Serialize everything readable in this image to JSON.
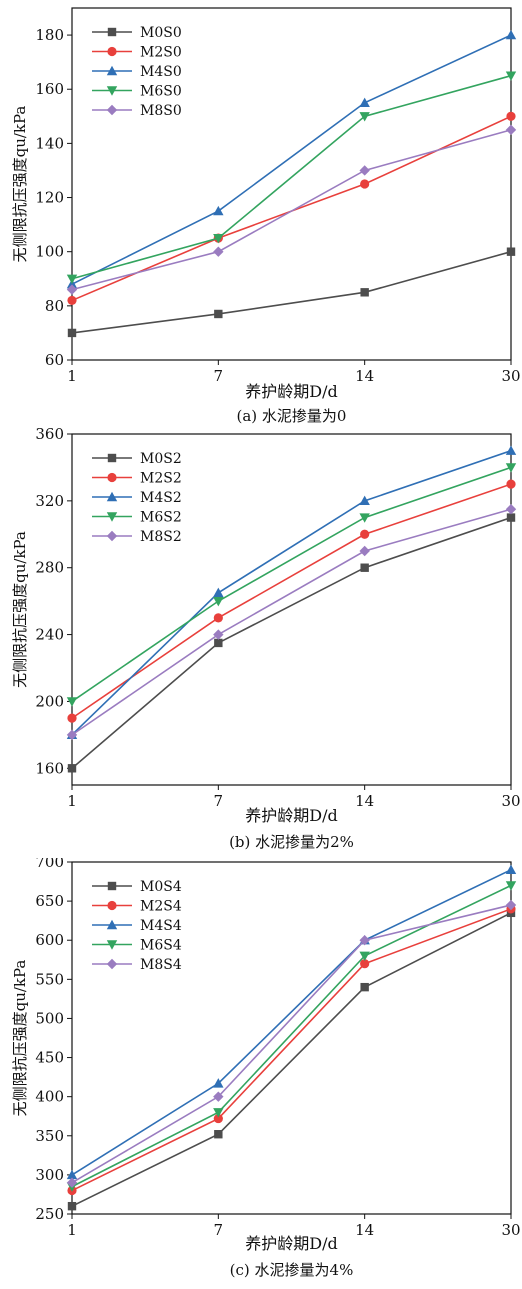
{
  "figure": {
    "chart_data": [
      {
        "type": "line",
        "caption": "(a) 水泥掺量为0",
        "xlabel": "养护龄期D/d",
        "ylabel": "无侧限抗压强度qu/kPa",
        "categories": [
          "1",
          "7",
          "14",
          "30"
        ],
        "ylim": [
          60,
          190
        ],
        "yticks": [
          60,
          80,
          100,
          120,
          140,
          160,
          180
        ],
        "legend_position": "top-left",
        "series": [
          {
            "name": "M0S0",
            "values": [
              70,
              77,
              85,
              100
            ]
          },
          {
            "name": "M2S0",
            "values": [
              82,
              105,
              125,
              150
            ]
          },
          {
            "name": "M4S0",
            "values": [
              88,
              115,
              155,
              180
            ]
          },
          {
            "name": "M6S0",
            "values": [
              90,
              105,
              150,
              165
            ]
          },
          {
            "name": "M8S0",
            "values": [
              86,
              100,
              130,
              145
            ]
          }
        ]
      },
      {
        "type": "line",
        "caption": "(b) 水泥掺量为2%",
        "xlabel": "养护龄期D/d",
        "ylabel": "无侧限抗压强度qu/kPa",
        "categories": [
          "1",
          "7",
          "14",
          "30"
        ],
        "ylim": [
          150,
          360
        ],
        "yticks": [
          160,
          200,
          240,
          280,
          320,
          360
        ],
        "legend_position": "top-left",
        "series": [
          {
            "name": "M0S2",
            "values": [
              160,
              235,
              280,
              310
            ]
          },
          {
            "name": "M2S2",
            "values": [
              190,
              250,
              300,
              330
            ]
          },
          {
            "name": "M4S2",
            "values": [
              180,
              265,
              320,
              350
            ]
          },
          {
            "name": "M6S2",
            "values": [
              200,
              260,
              310,
              340
            ]
          },
          {
            "name": "M8S2",
            "values": [
              180,
              240,
              290,
              315
            ]
          }
        ]
      },
      {
        "type": "line",
        "caption": "(c) 水泥掺量为4%",
        "xlabel": "养护龄期D/d",
        "ylabel": "无侧限抗压强度qu/kPa",
        "categories": [
          "1",
          "7",
          "14",
          "30"
        ],
        "ylim": [
          250,
          700
        ],
        "yticks": [
          250,
          300,
          350,
          400,
          450,
          500,
          550,
          600,
          650,
          700
        ],
        "legend_position": "top-left",
        "series": [
          {
            "name": "M0S4",
            "values": [
              260,
              352,
              540,
              635
            ]
          },
          {
            "name": "M2S4",
            "values": [
              280,
              372,
              570,
              640
            ]
          },
          {
            "name": "M4S4",
            "values": [
              300,
              417,
              600,
              690
            ]
          },
          {
            "name": "M6S4",
            "values": [
              285,
              380,
              580,
              670
            ]
          },
          {
            "name": "M8S4",
            "values": [
              290,
              400,
              600,
              645
            ]
          }
        ]
      }
    ],
    "series_styles": [
      {
        "color": "#4d4d4d",
        "marker": "square"
      },
      {
        "color": "#e8403c",
        "marker": "circle"
      },
      {
        "color": "#2f6fb5",
        "marker": "triangle-up"
      },
      {
        "color": "#33a45f",
        "marker": "triangle-down"
      },
      {
        "color": "#9a7cc0",
        "marker": "diamond"
      }
    ]
  }
}
